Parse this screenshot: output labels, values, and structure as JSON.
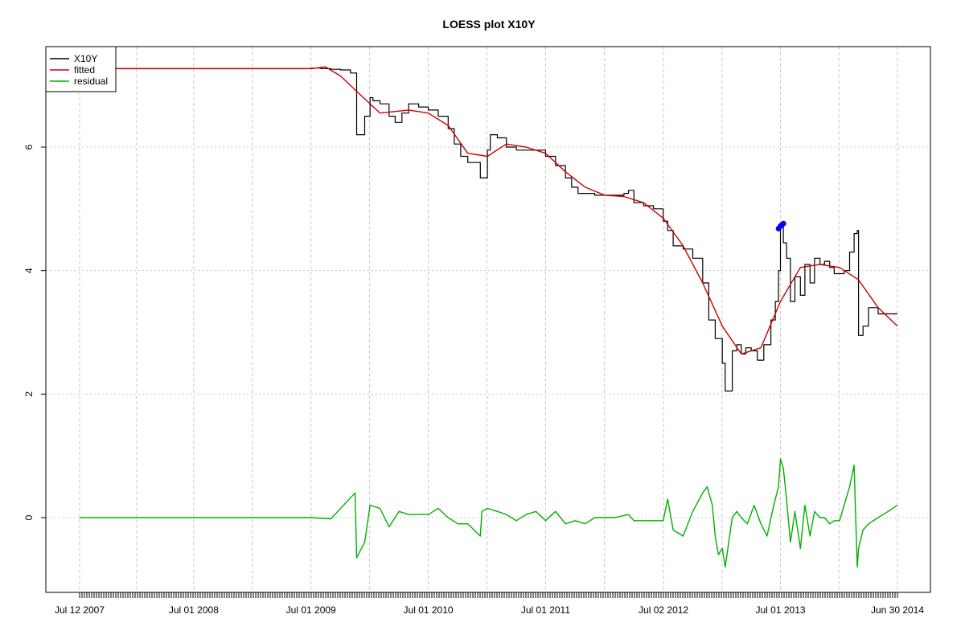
{
  "chart_data": {
    "type": "line",
    "title": "LOESS plot X10Y",
    "xlabel": "",
    "ylabel": "",
    "x_tick_labels": [
      "Jul 12 2007",
      "Jul 01 2008",
      "Jul 01 2009",
      "Jul 01 2010",
      "Jul 01 2011",
      "Jul 02 2012",
      "Jul 01 2013",
      "Jun 30 2014"
    ],
    "x_tick_dates": [
      "2007-07-12",
      "2008-07-01",
      "2009-07-01",
      "2010-07-01",
      "2011-07-01",
      "2012-07-02",
      "2013-07-01",
      "2014-06-30"
    ],
    "y_tick_labels": [
      "0",
      "2",
      "4",
      "6"
    ],
    "y_ticks": [
      0,
      2,
      4,
      6
    ],
    "xlim": [
      "2007-07-12",
      "2014-06-30"
    ],
    "ylim": [
      -1.2,
      7.7
    ],
    "grid": true,
    "legend_position": "top-left",
    "colors": {
      "X10Y": "#000000",
      "fitted": "#cc0000",
      "residual": "#00b000",
      "highlight": "#0000ff"
    },
    "series": [
      {
        "name": "X10Y",
        "step": true,
        "x": [
          "2007-07-12",
          "2009-07-01",
          "2009-07-15",
          "2009-08-01",
          "2009-09-01",
          "2009-10-01",
          "2009-11-01",
          "2009-11-20",
          "2009-12-15",
          "2010-01-01",
          "2010-01-10",
          "2010-02-01",
          "2010-03-01",
          "2010-03-20",
          "2010-04-10",
          "2010-05-01",
          "2010-06-01",
          "2010-07-01",
          "2010-08-01",
          "2010-09-01",
          "2010-09-20",
          "2010-10-10",
          "2010-11-01",
          "2010-11-20",
          "2010-12-10",
          "2011-01-01",
          "2011-01-10",
          "2011-02-01",
          "2011-03-01",
          "2011-04-01",
          "2011-05-01",
          "2011-06-01",
          "2011-07-01",
          "2011-08-01",
          "2011-09-01",
          "2011-09-20",
          "2011-10-10",
          "2011-11-01",
          "2011-12-01",
          "2012-01-01",
          "2012-02-01",
          "2012-03-01",
          "2012-03-15",
          "2012-04-01",
          "2012-05-01",
          "2012-06-01",
          "2012-07-01",
          "2012-07-15",
          "2012-08-01",
          "2012-09-01",
          "2012-10-01",
          "2012-11-01",
          "2012-11-20",
          "2012-12-10",
          "2013-01-01",
          "2013-01-10",
          "2013-02-01",
          "2013-02-15",
          "2013-03-01",
          "2013-03-15",
          "2013-04-01",
          "2013-04-20",
          "2013-05-10",
          "2013-06-01",
          "2013-06-15",
          "2013-06-25",
          "2013-07-01",
          "2013-07-05",
          "2013-07-10",
          "2013-07-20",
          "2013-08-01",
          "2013-08-15",
          "2013-09-01",
          "2013-09-15",
          "2013-10-01",
          "2013-10-15",
          "2013-11-01",
          "2013-11-15",
          "2013-12-01",
          "2013-12-15",
          "2014-01-01",
          "2014-01-15",
          "2014-02-01",
          "2014-02-15",
          "2014-02-25",
          "2014-03-01",
          "2014-03-15",
          "2014-04-01",
          "2014-05-01",
          "2014-06-01",
          "2014-06-30"
        ],
        "values": [
          7.27,
          7.28,
          7.28,
          7.27,
          7.26,
          7.25,
          7.2,
          6.2,
          6.5,
          6.8,
          6.75,
          6.7,
          6.5,
          6.4,
          6.55,
          6.7,
          6.65,
          6.6,
          6.5,
          6.3,
          6.05,
          5.85,
          5.75,
          5.75,
          5.5,
          5.95,
          6.2,
          6.15,
          6.0,
          5.95,
          5.95,
          5.95,
          5.85,
          5.7,
          5.5,
          5.35,
          5.25,
          5.25,
          5.22,
          5.22,
          5.22,
          5.25,
          5.3,
          5.1,
          5.05,
          5.0,
          4.8,
          4.65,
          4.4,
          4.35,
          4.2,
          3.8,
          3.2,
          2.9,
          2.5,
          2.05,
          2.7,
          2.8,
          2.65,
          2.75,
          2.7,
          2.55,
          2.8,
          3.2,
          3.5,
          4.0,
          4.7,
          4.75,
          4.45,
          4.2,
          3.5,
          3.9,
          3.6,
          4.1,
          3.8,
          4.2,
          4.1,
          4.15,
          4.05,
          3.95,
          3.95,
          4.0,
          4.3,
          4.6,
          4.65,
          2.95,
          3.1,
          3.4,
          3.3,
          3.3,
          3.3
        ]
      },
      {
        "name": "fitted",
        "x": [
          "2007-07-12",
          "2009-07-01",
          "2009-08-15",
          "2009-10-01",
          "2009-12-01",
          "2010-02-01",
          "2010-05-01",
          "2010-07-01",
          "2010-09-01",
          "2010-11-01",
          "2011-01-01",
          "2011-03-01",
          "2011-05-01",
          "2011-07-01",
          "2011-09-01",
          "2011-11-01",
          "2012-01-01",
          "2012-03-01",
          "2012-05-01",
          "2012-07-01",
          "2012-09-01",
          "2012-11-01",
          "2013-01-01",
          "2013-03-01",
          "2013-05-01",
          "2013-07-01",
          "2013-09-01",
          "2013-11-01",
          "2014-01-01",
          "2014-03-01",
          "2014-05-01",
          "2014-06-30"
        ],
        "values": [
          7.27,
          7.27,
          7.3,
          7.15,
          6.85,
          6.55,
          6.6,
          6.55,
          6.35,
          5.9,
          5.85,
          6.05,
          6.0,
          5.9,
          5.6,
          5.35,
          5.22,
          5.2,
          5.1,
          4.85,
          4.4,
          3.8,
          3.1,
          2.65,
          2.75,
          3.5,
          4.05,
          4.1,
          4.05,
          3.85,
          3.4,
          3.1
        ]
      },
      {
        "name": "residual",
        "x": [
          "2007-07-12",
          "2009-07-01",
          "2009-09-01",
          "2009-11-15",
          "2009-11-20",
          "2009-12-15",
          "2010-01-01",
          "2010-02-01",
          "2010-03-01",
          "2010-04-01",
          "2010-05-01",
          "2010-06-01",
          "2010-07-01",
          "2010-08-01",
          "2010-09-01",
          "2010-10-01",
          "2010-11-01",
          "2010-12-10",
          "2010-12-15",
          "2011-01-01",
          "2011-02-01",
          "2011-03-01",
          "2011-04-01",
          "2011-05-01",
          "2011-06-01",
          "2011-07-01",
          "2011-08-01",
          "2011-09-01",
          "2011-10-01",
          "2011-11-01",
          "2011-12-01",
          "2012-01-01",
          "2012-02-01",
          "2012-03-15",
          "2012-04-01",
          "2012-05-01",
          "2012-06-01",
          "2012-07-01",
          "2012-07-15",
          "2012-08-01",
          "2012-09-01",
          "2012-10-01",
          "2012-11-01",
          "2012-11-15",
          "2012-12-01",
          "2012-12-10",
          "2012-12-20",
          "2013-01-01",
          "2013-01-10",
          "2013-02-01",
          "2013-02-15",
          "2013-03-01",
          "2013-03-20",
          "2013-04-10",
          "2013-05-01",
          "2013-05-20",
          "2013-06-10",
          "2013-06-25",
          "2013-07-01",
          "2013-07-10",
          "2013-07-20",
          "2013-08-01",
          "2013-08-15",
          "2013-09-01",
          "2013-09-15",
          "2013-10-01",
          "2013-10-15",
          "2013-11-01",
          "2013-11-15",
          "2013-12-01",
          "2013-12-15",
          "2014-01-01",
          "2014-01-15",
          "2014-02-01",
          "2014-02-15",
          "2014-02-25",
          "2014-03-01",
          "2014-03-15",
          "2014-04-01",
          "2014-05-01",
          "2014-06-01",
          "2014-06-30"
        ],
        "values": [
          0,
          0,
          -0.02,
          0.4,
          -0.65,
          -0.4,
          0.2,
          0.15,
          -0.15,
          0.1,
          0.05,
          0.05,
          0.05,
          0.15,
          0.0,
          -0.1,
          -0.1,
          -0.3,
          0.1,
          0.15,
          0.1,
          0.05,
          -0.05,
          0.05,
          0.1,
          -0.05,
          0.1,
          -0.1,
          -0.05,
          -0.1,
          0.0,
          0.0,
          0.0,
          0.05,
          -0.05,
          -0.05,
          -0.05,
          -0.05,
          0.3,
          -0.2,
          -0.3,
          0.1,
          0.4,
          0.5,
          0.2,
          -0.3,
          -0.6,
          -0.5,
          -0.8,
          0.0,
          0.1,
          0.0,
          -0.1,
          0.2,
          -0.1,
          -0.3,
          0.2,
          0.5,
          0.95,
          0.8,
          0.3,
          -0.4,
          0.1,
          -0.5,
          0.2,
          -0.3,
          0.1,
          0.0,
          0.0,
          -0.1,
          -0.05,
          -0.05,
          0.2,
          0.5,
          0.85,
          -0.8,
          -0.5,
          -0.2,
          -0.1,
          0.0,
          0.1,
          0.2
        ]
      }
    ],
    "highlight_points": {
      "x": [
        "2013-06-25",
        "2013-07-01",
        "2013-07-05",
        "2013-07-10"
      ],
      "values": [
        4.68,
        4.72,
        4.74,
        4.76
      ]
    },
    "legend": [
      "X10Y",
      "fitted",
      "residual"
    ]
  }
}
